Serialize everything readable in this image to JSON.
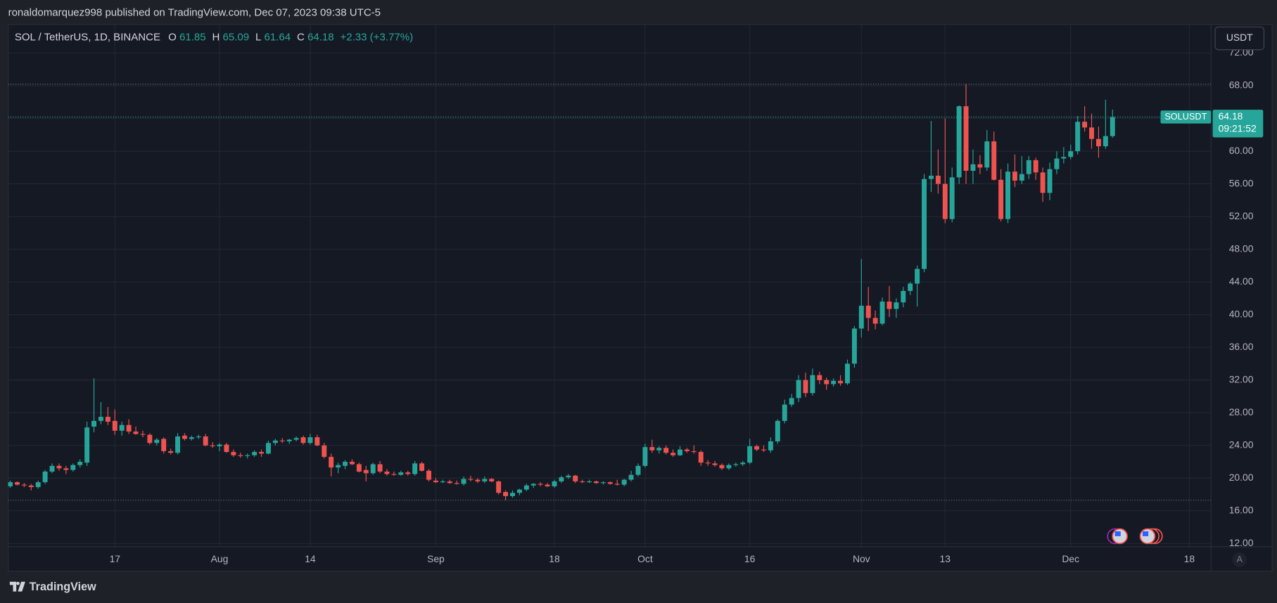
{
  "page": {
    "header": "ronaldomarquez998 published on TradingView.com, Dec 07, 2023 09:38 UTC-5",
    "legend": [
      {
        "key": "O",
        "value": "61.85"
      },
      {
        "key": "H",
        "value": "65.09"
      },
      {
        "key": "L",
        "value": "61.64"
      },
      {
        "key": "C",
        "value": "64.18"
      }
    ],
    "change": "+2.33 (+3.77%)",
    "currency_button": "USDT",
    "scale_button": "A",
    "footer": "TradingView"
  },
  "chart_data": {
    "type": "candlestick",
    "title": "SOL / TetherUS, 1D, BINANCE",
    "up_color": "#26a69a",
    "down_color": "#ef5350",
    "grid": true,
    "ylim": [
      11.6,
      75.5
    ],
    "yticks": [
      {
        "value": 12,
        "label": "12.00"
      },
      {
        "value": 16,
        "label": "16.00"
      },
      {
        "value": 20,
        "label": "20.00"
      },
      {
        "value": 24,
        "label": "24.00"
      },
      {
        "value": 28,
        "label": "28.00"
      },
      {
        "value": 32,
        "label": "32.00"
      },
      {
        "value": 36,
        "label": "36.00"
      },
      {
        "value": 40,
        "label": "40.00"
      },
      {
        "value": 44,
        "label": "44.00"
      },
      {
        "value": 48,
        "label": "48.00"
      },
      {
        "value": 52,
        "label": "52.00"
      },
      {
        "value": 56,
        "label": "56.00"
      },
      {
        "value": 60,
        "label": "60.00"
      },
      {
        "value": 64,
        "label": "64.00"
      },
      {
        "value": 68,
        "label": "68.00"
      },
      {
        "value": 72,
        "label": "72.00"
      }
    ],
    "xlim": [
      "07-01",
      "12-21"
    ],
    "xticks": [
      {
        "value": "07-17",
        "label": "17"
      },
      {
        "value": "08-01",
        "label": "Aug"
      },
      {
        "value": "08-14",
        "label": "14"
      },
      {
        "value": "09-01",
        "label": "Sep"
      },
      {
        "value": "09-18",
        "label": "18"
      },
      {
        "value": "10-01",
        "label": "Oct"
      },
      {
        "value": "10-16",
        "label": "16"
      },
      {
        "value": "11-01",
        "label": "Nov"
      },
      {
        "value": "11-13",
        "label": "13"
      },
      {
        "value": "12-01",
        "label": "Dec"
      },
      {
        "value": "12-18",
        "label": "18"
      }
    ],
    "hlines": [
      68.2,
      17.3
    ],
    "last_price": {
      "label": "SOLUSDT",
      "value": 64.18,
      "countdown": "09:21:52"
    },
    "x": [
      "07-02",
      "07-03",
      "07-04",
      "07-05",
      "07-06",
      "07-07",
      "07-08",
      "07-09",
      "07-10",
      "07-11",
      "07-12",
      "07-13",
      "07-14",
      "07-15",
      "07-16",
      "07-17",
      "07-18",
      "07-19",
      "07-20",
      "07-21",
      "07-22",
      "07-23",
      "07-24",
      "07-25",
      "07-26",
      "07-27",
      "07-28",
      "07-29",
      "07-30",
      "07-31",
      "08-01",
      "08-02",
      "08-03",
      "08-04",
      "08-05",
      "08-06",
      "08-07",
      "08-08",
      "08-09",
      "08-10",
      "08-11",
      "08-12",
      "08-13",
      "08-14",
      "08-15",
      "08-16",
      "08-17",
      "08-18",
      "08-19",
      "08-20",
      "08-21",
      "08-22",
      "08-23",
      "08-24",
      "08-25",
      "08-26",
      "08-27",
      "08-28",
      "08-29",
      "08-30",
      "08-31",
      "09-01",
      "09-02",
      "09-03",
      "09-04",
      "09-05",
      "09-06",
      "09-07",
      "09-08",
      "09-09",
      "09-10",
      "09-11",
      "09-12",
      "09-13",
      "09-14",
      "09-15",
      "09-16",
      "09-17",
      "09-18",
      "09-19",
      "09-20",
      "09-21",
      "09-22",
      "09-23",
      "09-24",
      "09-25",
      "09-26",
      "09-27",
      "09-28",
      "09-29",
      "09-30",
      "10-01",
      "10-02",
      "10-03",
      "10-04",
      "10-05",
      "10-06",
      "10-07",
      "10-08",
      "10-09",
      "10-10",
      "10-11",
      "10-12",
      "10-13",
      "10-14",
      "10-15",
      "10-16",
      "10-17",
      "10-18",
      "10-19",
      "10-20",
      "10-21",
      "10-22",
      "10-23",
      "10-24",
      "10-25",
      "10-26",
      "10-27",
      "10-28",
      "10-29",
      "10-30",
      "10-31",
      "11-01",
      "11-02",
      "11-03",
      "11-04",
      "11-05",
      "11-06",
      "11-07",
      "11-08",
      "11-09",
      "11-10",
      "11-11",
      "11-12",
      "11-13",
      "11-14",
      "11-15",
      "11-16",
      "11-17",
      "11-18",
      "11-19",
      "11-20",
      "11-21",
      "11-22",
      "11-23",
      "11-24",
      "11-25",
      "11-26",
      "11-27",
      "11-28",
      "11-29",
      "11-30",
      "12-01",
      "12-02",
      "12-03",
      "12-04",
      "12-05",
      "12-06",
      "12-07"
    ],
    "ohlc": [
      [
        19.0,
        19.7,
        18.8,
        19.5
      ],
      [
        19.5,
        19.6,
        19.1,
        19.2
      ],
      [
        19.2,
        19.4,
        18.9,
        19.1
      ],
      [
        19.1,
        19.3,
        18.5,
        18.9
      ],
      [
        18.9,
        19.7,
        18.7,
        19.5
      ],
      [
        19.5,
        21.0,
        19.3,
        20.8
      ],
      [
        20.8,
        21.8,
        20.6,
        21.5
      ],
      [
        21.5,
        21.8,
        20.9,
        21.2
      ],
      [
        21.2,
        21.5,
        20.5,
        21.0
      ],
      [
        21.0,
        21.8,
        20.8,
        21.6
      ],
      [
        21.6,
        22.3,
        21.3,
        22.0
      ],
      [
        21.9,
        26.9,
        21.5,
        26.2
      ],
      [
        26.3,
        32.2,
        25.6,
        27.0
      ],
      [
        27.0,
        29.3,
        26.6,
        27.5
      ],
      [
        27.5,
        28.7,
        26.5,
        26.9
      ],
      [
        27.0,
        28.4,
        25.3,
        25.8
      ],
      [
        25.8,
        26.9,
        25.2,
        26.5
      ],
      [
        26.5,
        27.2,
        25.4,
        25.7
      ],
      [
        25.7,
        26.3,
        25.3,
        25.4
      ],
      [
        25.4,
        25.8,
        25.0,
        25.3
      ],
      [
        25.3,
        25.5,
        24.1,
        24.3
      ],
      [
        24.3,
        24.9,
        24.0,
        24.7
      ],
      [
        24.8,
        25.0,
        23.0,
        23.3
      ],
      [
        23.3,
        23.6,
        22.9,
        23.1
      ],
      [
        23.1,
        25.5,
        22.9,
        25.1
      ],
      [
        25.2,
        25.5,
        24.6,
        24.8
      ],
      [
        24.8,
        25.2,
        24.6,
        25.0
      ],
      [
        25.0,
        25.3,
        24.8,
        25.1
      ],
      [
        25.1,
        25.4,
        23.9,
        24.0
      ],
      [
        24.0,
        24.4,
        23.7,
        23.9
      ],
      [
        23.9,
        24.3,
        23.3,
        24.1
      ],
      [
        24.1,
        24.3,
        23.1,
        23.2
      ],
      [
        23.2,
        23.5,
        22.6,
        22.8
      ],
      [
        22.8,
        23.1,
        22.5,
        22.7
      ],
      [
        22.7,
        23.0,
        22.4,
        22.8
      ],
      [
        22.8,
        23.4,
        22.6,
        23.2
      ],
      [
        23.2,
        23.5,
        22.6,
        23.0
      ],
      [
        23.0,
        24.6,
        22.9,
        24.3
      ],
      [
        24.3,
        24.8,
        24.0,
        24.6
      ],
      [
        24.6,
        24.9,
        24.3,
        24.5
      ],
      [
        24.5,
        24.8,
        24.2,
        24.7
      ],
      [
        24.7,
        25.1,
        24.5,
        24.9
      ],
      [
        25.0,
        25.2,
        24.1,
        24.3
      ],
      [
        24.3,
        25.4,
        24.1,
        25.0
      ],
      [
        25.0,
        25.3,
        23.9,
        24.0
      ],
      [
        24.0,
        24.3,
        22.4,
        22.6
      ],
      [
        22.6,
        23.0,
        20.2,
        21.3
      ],
      [
        21.3,
        21.9,
        20.6,
        21.6
      ],
      [
        21.5,
        22.2,
        21.1,
        22.0
      ],
      [
        22.0,
        22.3,
        21.6,
        21.7
      ],
      [
        21.7,
        21.9,
        20.7,
        20.8
      ],
      [
        21.0,
        21.5,
        19.6,
        20.6
      ],
      [
        20.6,
        21.9,
        20.4,
        21.7
      ],
      [
        21.7,
        22.1,
        20.6,
        20.8
      ],
      [
        20.8,
        21.1,
        20.3,
        20.5
      ],
      [
        20.5,
        20.8,
        20.3,
        20.4
      ],
      [
        20.4,
        20.9,
        20.3,
        20.7
      ],
      [
        20.7,
        20.9,
        20.3,
        20.5
      ],
      [
        20.5,
        22.1,
        20.3,
        21.8
      ],
      [
        21.8,
        22.0,
        20.8,
        20.9
      ],
      [
        20.9,
        21.1,
        19.6,
        19.8
      ],
      [
        19.7,
        20.0,
        19.4,
        19.5
      ],
      [
        19.5,
        19.8,
        19.4,
        19.6
      ],
      [
        19.6,
        19.8,
        19.3,
        19.4
      ],
      [
        19.4,
        19.7,
        19.2,
        19.3
      ],
      [
        19.3,
        20.2,
        19.1,
        19.9
      ],
      [
        19.9,
        20.3,
        19.6,
        19.8
      ],
      [
        19.8,
        20.0,
        19.4,
        19.6
      ],
      [
        19.6,
        20.2,
        19.4,
        19.9
      ],
      [
        19.9,
        20.0,
        19.5,
        19.6
      ],
      [
        19.6,
        19.7,
        18.0,
        18.2
      ],
      [
        18.3,
        18.5,
        17.3,
        17.8
      ],
      [
        17.8,
        18.5,
        17.6,
        18.2
      ],
      [
        18.2,
        18.7,
        17.9,
        18.6
      ],
      [
        18.6,
        19.3,
        18.4,
        19.1
      ],
      [
        19.1,
        19.4,
        18.8,
        19.3
      ],
      [
        19.3,
        19.5,
        19.0,
        19.2
      ],
      [
        19.2,
        19.4,
        18.9,
        19.0
      ],
      [
        19.0,
        19.8,
        18.8,
        19.6
      ],
      [
        19.6,
        20.3,
        19.4,
        20.1
      ],
      [
        20.1,
        20.5,
        19.9,
        20.3
      ],
      [
        20.3,
        20.4,
        19.4,
        19.6
      ],
      [
        19.6,
        19.8,
        19.4,
        19.5
      ],
      [
        19.5,
        19.8,
        19.4,
        19.6
      ],
      [
        19.6,
        19.7,
        19.3,
        19.4
      ],
      [
        19.4,
        19.6,
        19.2,
        19.5
      ],
      [
        19.5,
        19.6,
        19.2,
        19.3
      ],
      [
        19.3,
        19.8,
        19.1,
        19.2
      ],
      [
        19.2,
        19.9,
        19.0,
        19.8
      ],
      [
        19.8,
        20.9,
        19.6,
        20.4
      ],
      [
        20.4,
        21.8,
        20.2,
        21.5
      ],
      [
        21.5,
        24.2,
        21.3,
        23.8
      ],
      [
        23.8,
        24.7,
        23.1,
        23.4
      ],
      [
        23.4,
        23.9,
        23.0,
        23.7
      ],
      [
        23.7,
        24.0,
        22.9,
        23.1
      ],
      [
        23.1,
        23.5,
        22.6,
        22.8
      ],
      [
        22.8,
        23.9,
        22.7,
        23.5
      ],
      [
        23.5,
        23.7,
        23.1,
        23.3
      ],
      [
        23.3,
        24.0,
        23.0,
        23.2
      ],
      [
        23.2,
        23.4,
        21.5,
        21.9
      ],
      [
        21.9,
        22.2,
        21.5,
        21.8
      ],
      [
        21.8,
        22.1,
        21.4,
        21.6
      ],
      [
        21.6,
        21.8,
        21.0,
        21.2
      ],
      [
        21.2,
        21.8,
        21.0,
        21.6
      ],
      [
        21.6,
        21.9,
        21.4,
        21.7
      ],
      [
        21.7,
        22.1,
        21.5,
        21.9
      ],
      [
        21.9,
        24.8,
        21.7,
        23.9
      ],
      [
        23.9,
        24.1,
        23.3,
        23.5
      ],
      [
        23.5,
        24.0,
        23.2,
        23.4
      ],
      [
        23.4,
        25.0,
        23.1,
        24.5
      ],
      [
        24.5,
        27.2,
        24.2,
        27.0
      ],
      [
        27.0,
        29.6,
        26.7,
        29.0
      ],
      [
        29.0,
        30.3,
        28.7,
        29.8
      ],
      [
        29.8,
        32.6,
        29.3,
        32.0
      ],
      [
        32.0,
        32.9,
        29.9,
        30.4
      ],
      [
        30.4,
        33.4,
        30.1,
        32.6
      ],
      [
        32.6,
        33.0,
        31.5,
        32.0
      ],
      [
        32.0,
        32.3,
        30.8,
        31.5
      ],
      [
        31.5,
        32.2,
        31.2,
        31.9
      ],
      [
        31.9,
        32.6,
        31.3,
        31.6
      ],
      [
        31.6,
        34.5,
        31.4,
        34.0
      ],
      [
        34.0,
        38.6,
        33.5,
        38.3
      ],
      [
        38.3,
        46.8,
        37.2,
        41.1
      ],
      [
        41.1,
        43.4,
        38.0,
        39.6
      ],
      [
        39.6,
        40.5,
        38.2,
        38.9
      ],
      [
        38.9,
        42.1,
        38.7,
        41.6
      ],
      [
        41.6,
        43.5,
        39.7,
        40.7
      ],
      [
        40.7,
        42.0,
        39.6,
        41.5
      ],
      [
        41.5,
        43.4,
        40.9,
        42.9
      ],
      [
        42.9,
        44.0,
        42.4,
        43.8
      ],
      [
        43.8,
        46.0,
        41.0,
        45.6
      ],
      [
        45.6,
        57.2,
        45.2,
        56.6
      ],
      [
        56.6,
        63.7,
        55.0,
        57.0
      ],
      [
        57.0,
        60.2,
        54.8,
        56.0
      ],
      [
        56.0,
        64.0,
        51.2,
        51.7
      ],
      [
        51.7,
        58.0,
        51.3,
        56.8
      ],
      [
        56.8,
        65.6,
        56.0,
        65.5
      ],
      [
        65.5,
        68.2,
        56.0,
        57.6
      ],
      [
        57.6,
        60.2,
        56.0,
        58.4
      ],
      [
        58.4,
        59.5,
        57.2,
        58.0
      ],
      [
        58.0,
        62.6,
        57.6,
        61.2
      ],
      [
        61.2,
        62.4,
        56.4,
        56.5
      ],
      [
        56.5,
        57.8,
        51.4,
        51.7
      ],
      [
        51.7,
        58.5,
        51.2,
        57.5
      ],
      [
        57.5,
        59.6,
        55.6,
        56.4
      ],
      [
        56.4,
        59.4,
        56.0,
        57.2
      ],
      [
        57.2,
        59.4,
        56.6,
        58.9
      ],
      [
        58.9,
        59.2,
        56.5,
        57.4
      ],
      [
        57.4,
        58.0,
        53.8,
        54.9
      ],
      [
        54.9,
        58.6,
        54.0,
        57.8
      ],
      [
        57.8,
        60.0,
        57.2,
        59.1
      ],
      [
        59.1,
        60.5,
        58.5,
        59.3
      ],
      [
        59.3,
        60.8,
        59.0,
        60.0
      ],
      [
        60.0,
        64.3,
        59.6,
        63.6
      ],
      [
        63.6,
        65.5,
        62.4,
        62.9
      ],
      [
        62.9,
        64.6,
        60.3,
        61.5
      ],
      [
        61.5,
        63.0,
        59.2,
        60.6
      ],
      [
        60.6,
        66.3,
        60.3,
        61.85
      ],
      [
        61.85,
        65.09,
        61.64,
        64.18
      ]
    ]
  }
}
